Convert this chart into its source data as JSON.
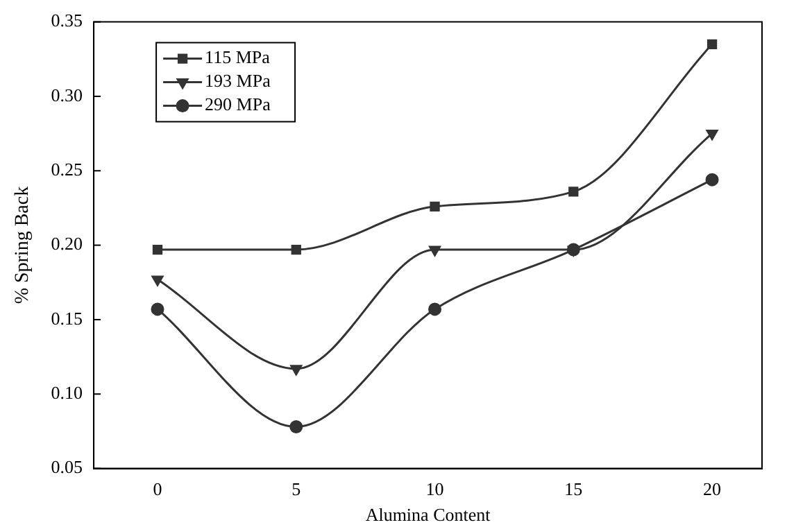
{
  "chart_data": {
    "type": "line",
    "xlabel": "Alumina Content",
    "ylabel": "% Spring Back",
    "x": [
      0,
      5,
      10,
      15,
      20
    ],
    "xlim": [
      -2.3,
      21.8
    ],
    "xticks": [
      0,
      5,
      10,
      15,
      20
    ],
    "ylim": [
      0.05,
      0.35
    ],
    "yticks": [
      {
        "value": 0.05,
        "label": "0.05"
      },
      {
        "value": 0.1,
        "label": "0.10"
      },
      {
        "value": 0.15,
        "label": "0.15"
      },
      {
        "value": 0.2,
        "label": "0.20"
      },
      {
        "value": 0.25,
        "label": "0.25"
      },
      {
        "value": 0.3,
        "label": "0.30"
      },
      {
        "value": 0.35,
        "label": "0.35"
      }
    ],
    "grid": false,
    "legend": "top left",
    "line_style": "solid",
    "series": [
      {
        "name": "115 MPa",
        "color": "#333333",
        "marker": "square",
        "values": [
          0.197,
          0.197,
          0.226,
          0.236,
          0.335
        ]
      },
      {
        "name": "193 MPa",
        "color": "#333333",
        "marker": "triangle",
        "values": [
          0.177,
          0.117,
          0.197,
          0.197,
          0.275
        ]
      },
      {
        "name": "290 MPa",
        "color": "#333333",
        "marker": "circle",
        "values": [
          0.157,
          0.078,
          0.157,
          0.197,
          0.244
        ]
      }
    ]
  }
}
